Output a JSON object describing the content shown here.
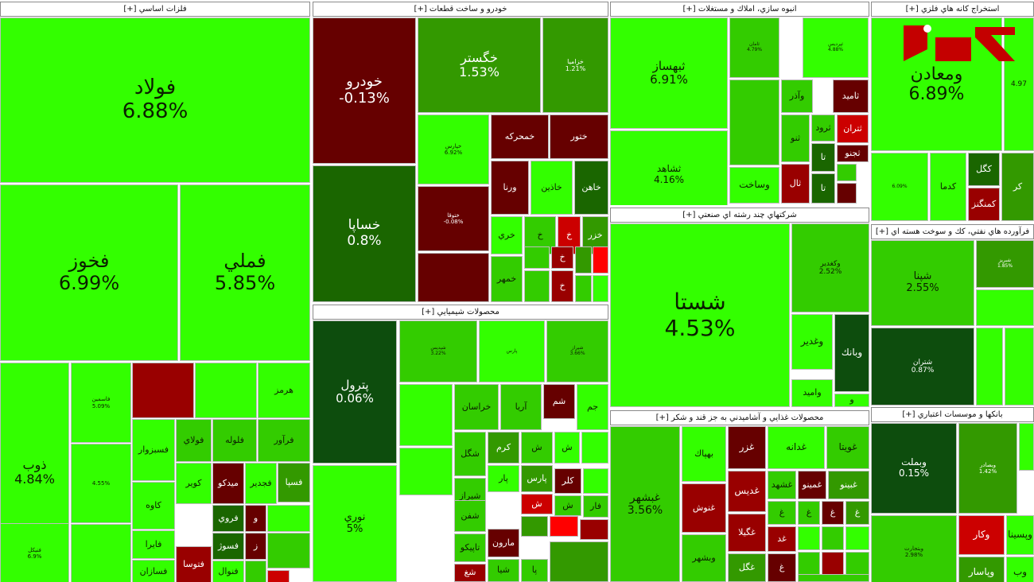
{
  "colors": {
    "strong_green": "#33ff00",
    "mid_green": "#33cc00",
    "green": "#339900",
    "dark_green": "#1a6600",
    "neutral_dark": "#0d4d0d",
    "dark_red": "#660000",
    "mid_red": "#990000",
    "red": "#cc0000",
    "bright_red": "#ff0000"
  },
  "logo_text": "رکنا",
  "chart_data": {
    "type": "treemap",
    "title": "",
    "sectors": [
      {
        "name": "فلزات اساسي [+]",
        "tiles": [
          {
            "symbol": "فولاد",
            "change": "6.88%",
            "color": "strong_green"
          },
          {
            "symbol": "فخوز",
            "change": "6.99%",
            "color": "strong_green"
          },
          {
            "symbol": "فملي",
            "change": "5.85%",
            "color": "strong_green"
          },
          {
            "symbol": "ذوب",
            "change": "4.84%",
            "color": "strong_green"
          },
          {
            "symbol": "فاسمين",
            "change": "5.09%",
            "color": "strong_green"
          },
          {
            "symbol": "",
            "change": "",
            "color": "mid_red"
          },
          {
            "symbol": "",
            "change": "",
            "color": "strong_green"
          },
          {
            "symbol": "هرمز",
            "change": "",
            "color": "strong_green"
          },
          {
            "symbol": "",
            "change": "4.55%",
            "color": "strong_green"
          },
          {
            "symbol": "فسبزوار",
            "change": "",
            "color": "strong_green"
          },
          {
            "symbol": "فولاي",
            "change": "",
            "color": "mid_green"
          },
          {
            "symbol": "فلوله",
            "change": "",
            "color": "mid_green"
          },
          {
            "symbol": "فرآور",
            "change": "",
            "color": "mid_green"
          },
          {
            "symbol": "كاوه",
            "change": "",
            "color": "strong_green"
          },
          {
            "symbol": "كوير",
            "change": "",
            "color": "strong_green"
          },
          {
            "symbol": "ميدكو",
            "change": "",
            "color": "dark_red"
          },
          {
            "symbol": "فجدير",
            "change": "",
            "color": "strong_green"
          },
          {
            "symbol": "فسپا",
            "change": "",
            "color": "green"
          },
          {
            "symbol": "فنيكل",
            "change": "6.9%",
            "color": "strong_green"
          },
          {
            "symbol": "",
            "change": "",
            "color": "strong_green"
          },
          {
            "symbol": "فايرا",
            "change": "",
            "color": "strong_green"
          },
          {
            "symbol": "فروي",
            "change": "",
            "color": "dark_green"
          },
          {
            "symbol": "و",
            "change": "",
            "color": "dark_red"
          },
          {
            "symbol": "",
            "change": "",
            "color": "strong_green"
          },
          {
            "symbol": "فسازان",
            "change": "",
            "color": "strong_green"
          },
          {
            "symbol": "فتوسا",
            "change": "",
            "color": "mid_red"
          },
          {
            "symbol": "فسوژ",
            "change": "",
            "color": "dark_green"
          },
          {
            "symbol": "ز",
            "change": "",
            "color": "dark_red"
          },
          {
            "symbol": "فنوال",
            "change": "",
            "color": "strong_green"
          },
          {
            "symbol": "",
            "change": "",
            "color": "red"
          },
          {
            "symbol": "",
            "change": "",
            "color": "mid_green"
          },
          {
            "symbol": "",
            "change": "",
            "color": "mid_green"
          }
        ]
      },
      {
        "name": "خودرو و ساخت قطعات [+]",
        "tiles": [
          {
            "symbol": "خودرو",
            "change": "-0.13%",
            "color": "dark_red"
          },
          {
            "symbol": "خگستر",
            "change": "1.53%",
            "color": "green"
          },
          {
            "symbol": "خزاميا",
            "change": "1.21%",
            "color": "green"
          },
          {
            "symbol": "خساپا",
            "change": "0.8%",
            "color": "dark_green"
          },
          {
            "symbol": "خپارس",
            "change": "6.92%",
            "color": "strong_green"
          },
          {
            "symbol": "خمحركه",
            "change": "",
            "color": "dark_red"
          },
          {
            "symbol": "ختور",
            "change": "",
            "color": "dark_red"
          },
          {
            "symbol": "ختوقا",
            "change": "-0.08%",
            "color": "dark_red"
          },
          {
            "symbol": "ورنا",
            "change": "",
            "color": "dark_red"
          },
          {
            "symbol": "خاذين",
            "change": "",
            "color": "strong_green"
          },
          {
            "symbol": "خاهن",
            "change": "",
            "color": "dark_green"
          },
          {
            "symbol": "",
            "change": "",
            "color": "dark_red"
          },
          {
            "symbol": "خري",
            "change": "",
            "color": "strong_green"
          },
          {
            "symbol": "خ",
            "change": "",
            "color": "mid_green"
          },
          {
            "symbol": "خ",
            "change": "",
            "color": "red"
          },
          {
            "symbol": "خزر",
            "change": "",
            "color": "green"
          },
          {
            "symbol": "خمهر",
            "change": "",
            "color": "mid_green"
          },
          {
            "symbol": "",
            "change": "",
            "color": "mid_green"
          },
          {
            "symbol": "خ",
            "change": "",
            "color": "mid_red"
          },
          {
            "symbol": "",
            "change": "",
            "color": "green"
          },
          {
            "symbol": "",
            "change": "",
            "color": "bright_red"
          },
          {
            "symbol": "",
            "change": "",
            "color": "mid_green"
          },
          {
            "symbol": "خ",
            "change": "",
            "color": "mid_red"
          },
          {
            "symbol": "",
            "change": "",
            "color": "mid_green"
          },
          {
            "symbol": "",
            "change": "",
            "color": "strong_green"
          }
        ]
      },
      {
        "name": "انبوه سازي، املاك و مستغلات [+]",
        "tiles": [
          {
            "symbol": "ثبهساز",
            "change": "6.91%",
            "color": "strong_green"
          },
          {
            "symbol": "ثامان",
            "change": "4.79%",
            "color": "mid_green"
          },
          {
            "symbol": "ثپرديس",
            "change": "4.88%",
            "color": "strong_green"
          },
          {
            "symbol": "",
            "change": "",
            "color": "mid_green"
          },
          {
            "symbol": "وآذر",
            "change": "",
            "color": "mid_green"
          },
          {
            "symbol": "ثاميد",
            "change": "",
            "color": "dark_red"
          },
          {
            "symbol": "ثشاهد",
            "change": "4.16%",
            "color": "strong_green"
          },
          {
            "symbol": "ثنو",
            "change": "",
            "color": "mid_green"
          },
          {
            "symbol": "ثرود",
            "change": "",
            "color": "mid_green"
          },
          {
            "symbol": "ثتران",
            "change": "",
            "color": "red"
          },
          {
            "symbol": "تا",
            "change": "",
            "color": "dark_green"
          },
          {
            "symbol": "ثجنو",
            "change": "",
            "color": "dark_red"
          },
          {
            "symbol": "وساخت",
            "change": "",
            "color": "strong_green"
          },
          {
            "symbol": "ثال",
            "change": "",
            "color": "mid_red"
          },
          {
            "symbol": "تا",
            "change": "",
            "color": "dark_green"
          },
          {
            "symbol": "",
            "change": "",
            "color": "mid_green"
          },
          {
            "symbol": "",
            "change": "",
            "color": "dark_red"
          }
        ]
      },
      {
        "name": "استخراج كانه هاي فلزي [+]",
        "tiles": [
          {
            "symbol": "ومعادن",
            "change": "6.89%",
            "color": "strong_green"
          },
          {
            "symbol": "",
            "change": "4.97",
            "color": "strong_green"
          },
          {
            "symbol": "",
            "change": "6.09%",
            "color": "strong_green"
          },
          {
            "symbol": "كدما",
            "change": "",
            "color": "strong_green"
          },
          {
            "symbol": "كگل",
            "change": "",
            "color": "dark_green"
          },
          {
            "symbol": "كمنگنز",
            "change": "",
            "color": "mid_red"
          },
          {
            "symbol": "كر",
            "change": "",
            "color": "green"
          }
        ]
      },
      {
        "name": "فرآورده هاي نفتي، كك و سوخت هسته اي [+]",
        "tiles": [
          {
            "symbol": "شپنا",
            "change": "2.55%",
            "color": "mid_green"
          },
          {
            "symbol": "شبريز",
            "change": "1.85%",
            "color": "green"
          },
          {
            "symbol": "",
            "change": "",
            "color": "strong_green"
          },
          {
            "symbol": "شتران",
            "change": "0.87%",
            "color": "neutral_dark"
          },
          {
            "symbol": "",
            "change": "",
            "color": "strong_green"
          },
          {
            "symbol": "",
            "change": "",
            "color": "strong_green"
          }
        ]
      },
      {
        "name": "محصولات شيميايي [+]",
        "tiles": [
          {
            "symbol": "پترول",
            "change": "0.06%",
            "color": "neutral_dark"
          },
          {
            "symbol": "شپديس",
            "change": "3.22%",
            "color": "mid_green"
          },
          {
            "symbol": "پارس",
            "change": "",
            "color": "strong_green"
          },
          {
            "symbol": "شيراز",
            "change": "3.66%",
            "color": "mid_green"
          },
          {
            "symbol": "",
            "change": "",
            "color": "strong_green"
          },
          {
            "symbol": "خراسان",
            "change": "",
            "color": "mid_green"
          },
          {
            "symbol": "آريا",
            "change": "",
            "color": "mid_green"
          },
          {
            "symbol": "شم",
            "change": "",
            "color": "dark_red"
          },
          {
            "symbol": "جم",
            "change": "",
            "color": "strong_green"
          },
          {
            "symbol": "نوري",
            "change": "5%",
            "color": "strong_green"
          },
          {
            "symbol": "",
            "change": "",
            "color": "strong_green"
          },
          {
            "symbol": "شگل",
            "change": "",
            "color": "mid_green"
          },
          {
            "symbol": "كرم",
            "change": "",
            "color": "green"
          },
          {
            "symbol": "ش",
            "change": "",
            "color": "mid_green"
          },
          {
            "symbol": "ش",
            "change": "",
            "color": "strong_green"
          },
          {
            "symbol": "",
            "change": "",
            "color": "strong_green"
          },
          {
            "symbol": "شيراز",
            "change": "",
            "color": "mid_green"
          },
          {
            "symbol": "پار",
            "change": "",
            "color": "strong_green"
          },
          {
            "symbol": "پارس",
            "change": "",
            "color": "green"
          },
          {
            "symbol": "كلر",
            "change": "",
            "color": "dark_red"
          },
          {
            "symbol": "",
            "change": "",
            "color": "strong_green"
          },
          {
            "symbol": "شفن",
            "change": "",
            "color": "mid_green"
          },
          {
            "symbol": "ش",
            "change": "",
            "color": "red"
          },
          {
            "symbol": "ش",
            "change": "",
            "color": "mid_green"
          },
          {
            "symbol": "فار",
            "change": "",
            "color": "mid_green"
          },
          {
            "symbol": "تاپيكو",
            "change": "",
            "color": "mid_green"
          },
          {
            "symbol": "مارون",
            "change": "",
            "color": "dark_red"
          },
          {
            "symbol": "",
            "change": "",
            "color": "green"
          },
          {
            "symbol": "",
            "change": "",
            "color": "bright_red"
          },
          {
            "symbol": "",
            "change": "",
            "color": "mid_red"
          },
          {
            "symbol": "شغ",
            "change": "",
            "color": "mid_red"
          },
          {
            "symbol": "شيا",
            "change": "",
            "color": "mid_green"
          },
          {
            "symbol": "پا",
            "change": "",
            "color": "mid_green"
          },
          {
            "symbol": "",
            "change": "",
            "color": "green"
          }
        ]
      },
      {
        "name": "شركتهاي چند رشته اي صنعتي [+]",
        "tiles": [
          {
            "symbol": "شستا",
            "change": "4.53%",
            "color": "strong_green"
          },
          {
            "symbol": "وكغدير",
            "change": "2.52%",
            "color": "mid_green"
          },
          {
            "symbol": "وغدير",
            "change": "",
            "color": "strong_green"
          },
          {
            "symbol": "وبانك",
            "change": "",
            "color": "neutral_dark"
          },
          {
            "symbol": "واميد",
            "change": "",
            "color": "strong_green"
          },
          {
            "symbol": "و",
            "change": "",
            "color": "strong_green"
          }
        ]
      },
      {
        "name": "محصولات غذايي و آشاميدني به جز قند و شكر [+]",
        "tiles": [
          {
            "symbol": "غبشهر",
            "change": "3.56%",
            "color": "mid_green"
          },
          {
            "symbol": "بهپاك",
            "change": "",
            "color": "strong_green"
          },
          {
            "symbol": "غزر",
            "change": "",
            "color": "dark_red"
          },
          {
            "symbol": "غدانه",
            "change": "",
            "color": "strong_green"
          },
          {
            "symbol": "غويتا",
            "change": "",
            "color": "mid_green"
          },
          {
            "symbol": "غنوش",
            "change": "",
            "color": "mid_red"
          },
          {
            "symbol": "غديس",
            "change": "",
            "color": "mid_red"
          },
          {
            "symbol": "غشهد",
            "change": "",
            "color": "mid_green"
          },
          {
            "symbol": "غمينو",
            "change": "",
            "color": "dark_red"
          },
          {
            "symbol": "غبينو",
            "change": "",
            "color": "green"
          },
          {
            "symbol": "غگيلا",
            "change": "",
            "color": "mid_red"
          },
          {
            "symbol": "غ",
            "change": "",
            "color": "mid_green"
          },
          {
            "symbol": "غ",
            "change": "",
            "color": "mid_green"
          },
          {
            "symbol": "غ",
            "change": "",
            "color": "dark_red"
          },
          {
            "symbol": "غ",
            "change": "",
            "color": "green"
          },
          {
            "symbol": "غد",
            "change": "",
            "color": "mid_red"
          },
          {
            "symbol": "",
            "change": "",
            "color": "strong_green"
          },
          {
            "symbol": "",
            "change": "",
            "color": "mid_green"
          },
          {
            "symbol": "",
            "change": "",
            "color": "strong_green"
          },
          {
            "symbol": "وبشهر",
            "change": "",
            "color": "mid_green"
          },
          {
            "symbol": "غگل",
            "change": "",
            "color": "green"
          },
          {
            "symbol": "غ",
            "change": "",
            "color": "dark_red"
          },
          {
            "symbol": "",
            "change": "",
            "color": "mid_green"
          },
          {
            "symbol": "",
            "change": "",
            "color": "mid_red"
          },
          {
            "symbol": "",
            "change": "",
            "color": "mid_green"
          },
          {
            "symbol": "",
            "change": "",
            "color": "mid_green"
          }
        ]
      },
      {
        "name": "بانكها و موسسات اعتباري [+]",
        "tiles": [
          {
            "symbol": "وبملت",
            "change": "0.15%",
            "color": "neutral_dark"
          },
          {
            "symbol": "وبصادر",
            "change": "1.42%",
            "color": "green"
          },
          {
            "symbol": "",
            "change": "",
            "color": "strong_green"
          },
          {
            "symbol": "وكار",
            "change": "",
            "color": "red"
          },
          {
            "symbol": "وبتجارت",
            "change": "2.98%",
            "color": "mid_green"
          },
          {
            "symbol": "وپسينا",
            "change": "",
            "color": "strong_green"
          },
          {
            "symbol": "وپاسار",
            "change": "",
            "color": "green"
          },
          {
            "symbol": "وب",
            "change": "",
            "color": "strong_green"
          }
        ]
      }
    ]
  }
}
